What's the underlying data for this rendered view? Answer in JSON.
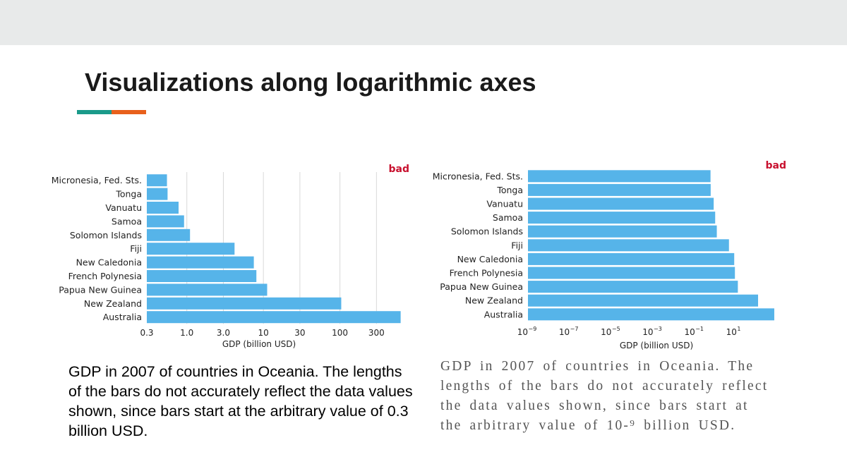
{
  "slide": {
    "title": "Visualizations along logarithmic axes",
    "accent_colors": [
      "#1a9a8a",
      "#e8601c"
    ],
    "caption_left": "GDP in 2007 of countries in Oceania. The lengths of the bars do not accurately reflect the data values shown, since bars start at the arbitrary value of 0.3 billion USD.",
    "caption_right": "GDP in 2007 of countries in Oceania. The lengths of the bars do not accurately reflect the data values shown, since bars start at the arbitrary value of 10‑⁹ billion USD."
  },
  "chart_data": [
    {
      "type": "bar",
      "orientation": "horizontal",
      "badge": "bad",
      "badge_color": "#c8102e",
      "bar_color": "#56b4e9",
      "xlabel": "GDP (billion USD)",
      "x_scale": "log",
      "xlim": [
        0.3,
        600
      ],
      "bar_baseline": 0.3,
      "grid": "vertical",
      "xticks": [
        {
          "value": 0.3,
          "label": "0.3"
        },
        {
          "value": 1,
          "label": "1.0"
        },
        {
          "value": 3,
          "label": "3.0"
        },
        {
          "value": 10,
          "label": "10"
        },
        {
          "value": 30,
          "label": "30"
        },
        {
          "value": 100,
          "label": "100"
        },
        {
          "value": 300,
          "label": "300"
        }
      ],
      "categories": [
        "Micronesia, Fed. Sts.",
        "Tonga",
        "Vanuatu",
        "Samoa",
        "Solomon Islands",
        "Fiji",
        "New Caledonia",
        "French Polynesia",
        "Papua New Guinea",
        "New Zealand",
        "Australia"
      ],
      "values": [
        0.55,
        0.56,
        0.78,
        0.92,
        1.1,
        4.2,
        7.5,
        8.1,
        11.2,
        104,
        621
      ]
    },
    {
      "type": "bar",
      "orientation": "horizontal",
      "badge": "bad",
      "badge_color": "#c8102e",
      "bar_color": "#56b4e9",
      "xlabel": "GDP (billion USD)",
      "x_scale": "log",
      "xlim": [
        1e-09,
        2000
      ],
      "bar_baseline": 1e-09,
      "grid": "none",
      "xticks": [
        {
          "value": 1e-09,
          "base": "10",
          "exp": "−9"
        },
        {
          "value": 1e-07,
          "base": "10",
          "exp": "−7"
        },
        {
          "value": 1e-05,
          "base": "10",
          "exp": "−5"
        },
        {
          "value": 0.001,
          "base": "10",
          "exp": "−3"
        },
        {
          "value": 0.1,
          "base": "10",
          "exp": "−1"
        },
        {
          "value": 10,
          "base": "10",
          "exp": "1"
        }
      ],
      "categories": [
        "Micronesia, Fed. Sts.",
        "Tonga",
        "Vanuatu",
        "Samoa",
        "Solomon Islands",
        "Fiji",
        "New Caledonia",
        "French Polynesia",
        "Papua New Guinea",
        "New Zealand",
        "Australia"
      ],
      "values": [
        0.55,
        0.56,
        0.78,
        0.92,
        1.1,
        4.2,
        7.5,
        8.1,
        11.2,
        104,
        621
      ]
    }
  ]
}
